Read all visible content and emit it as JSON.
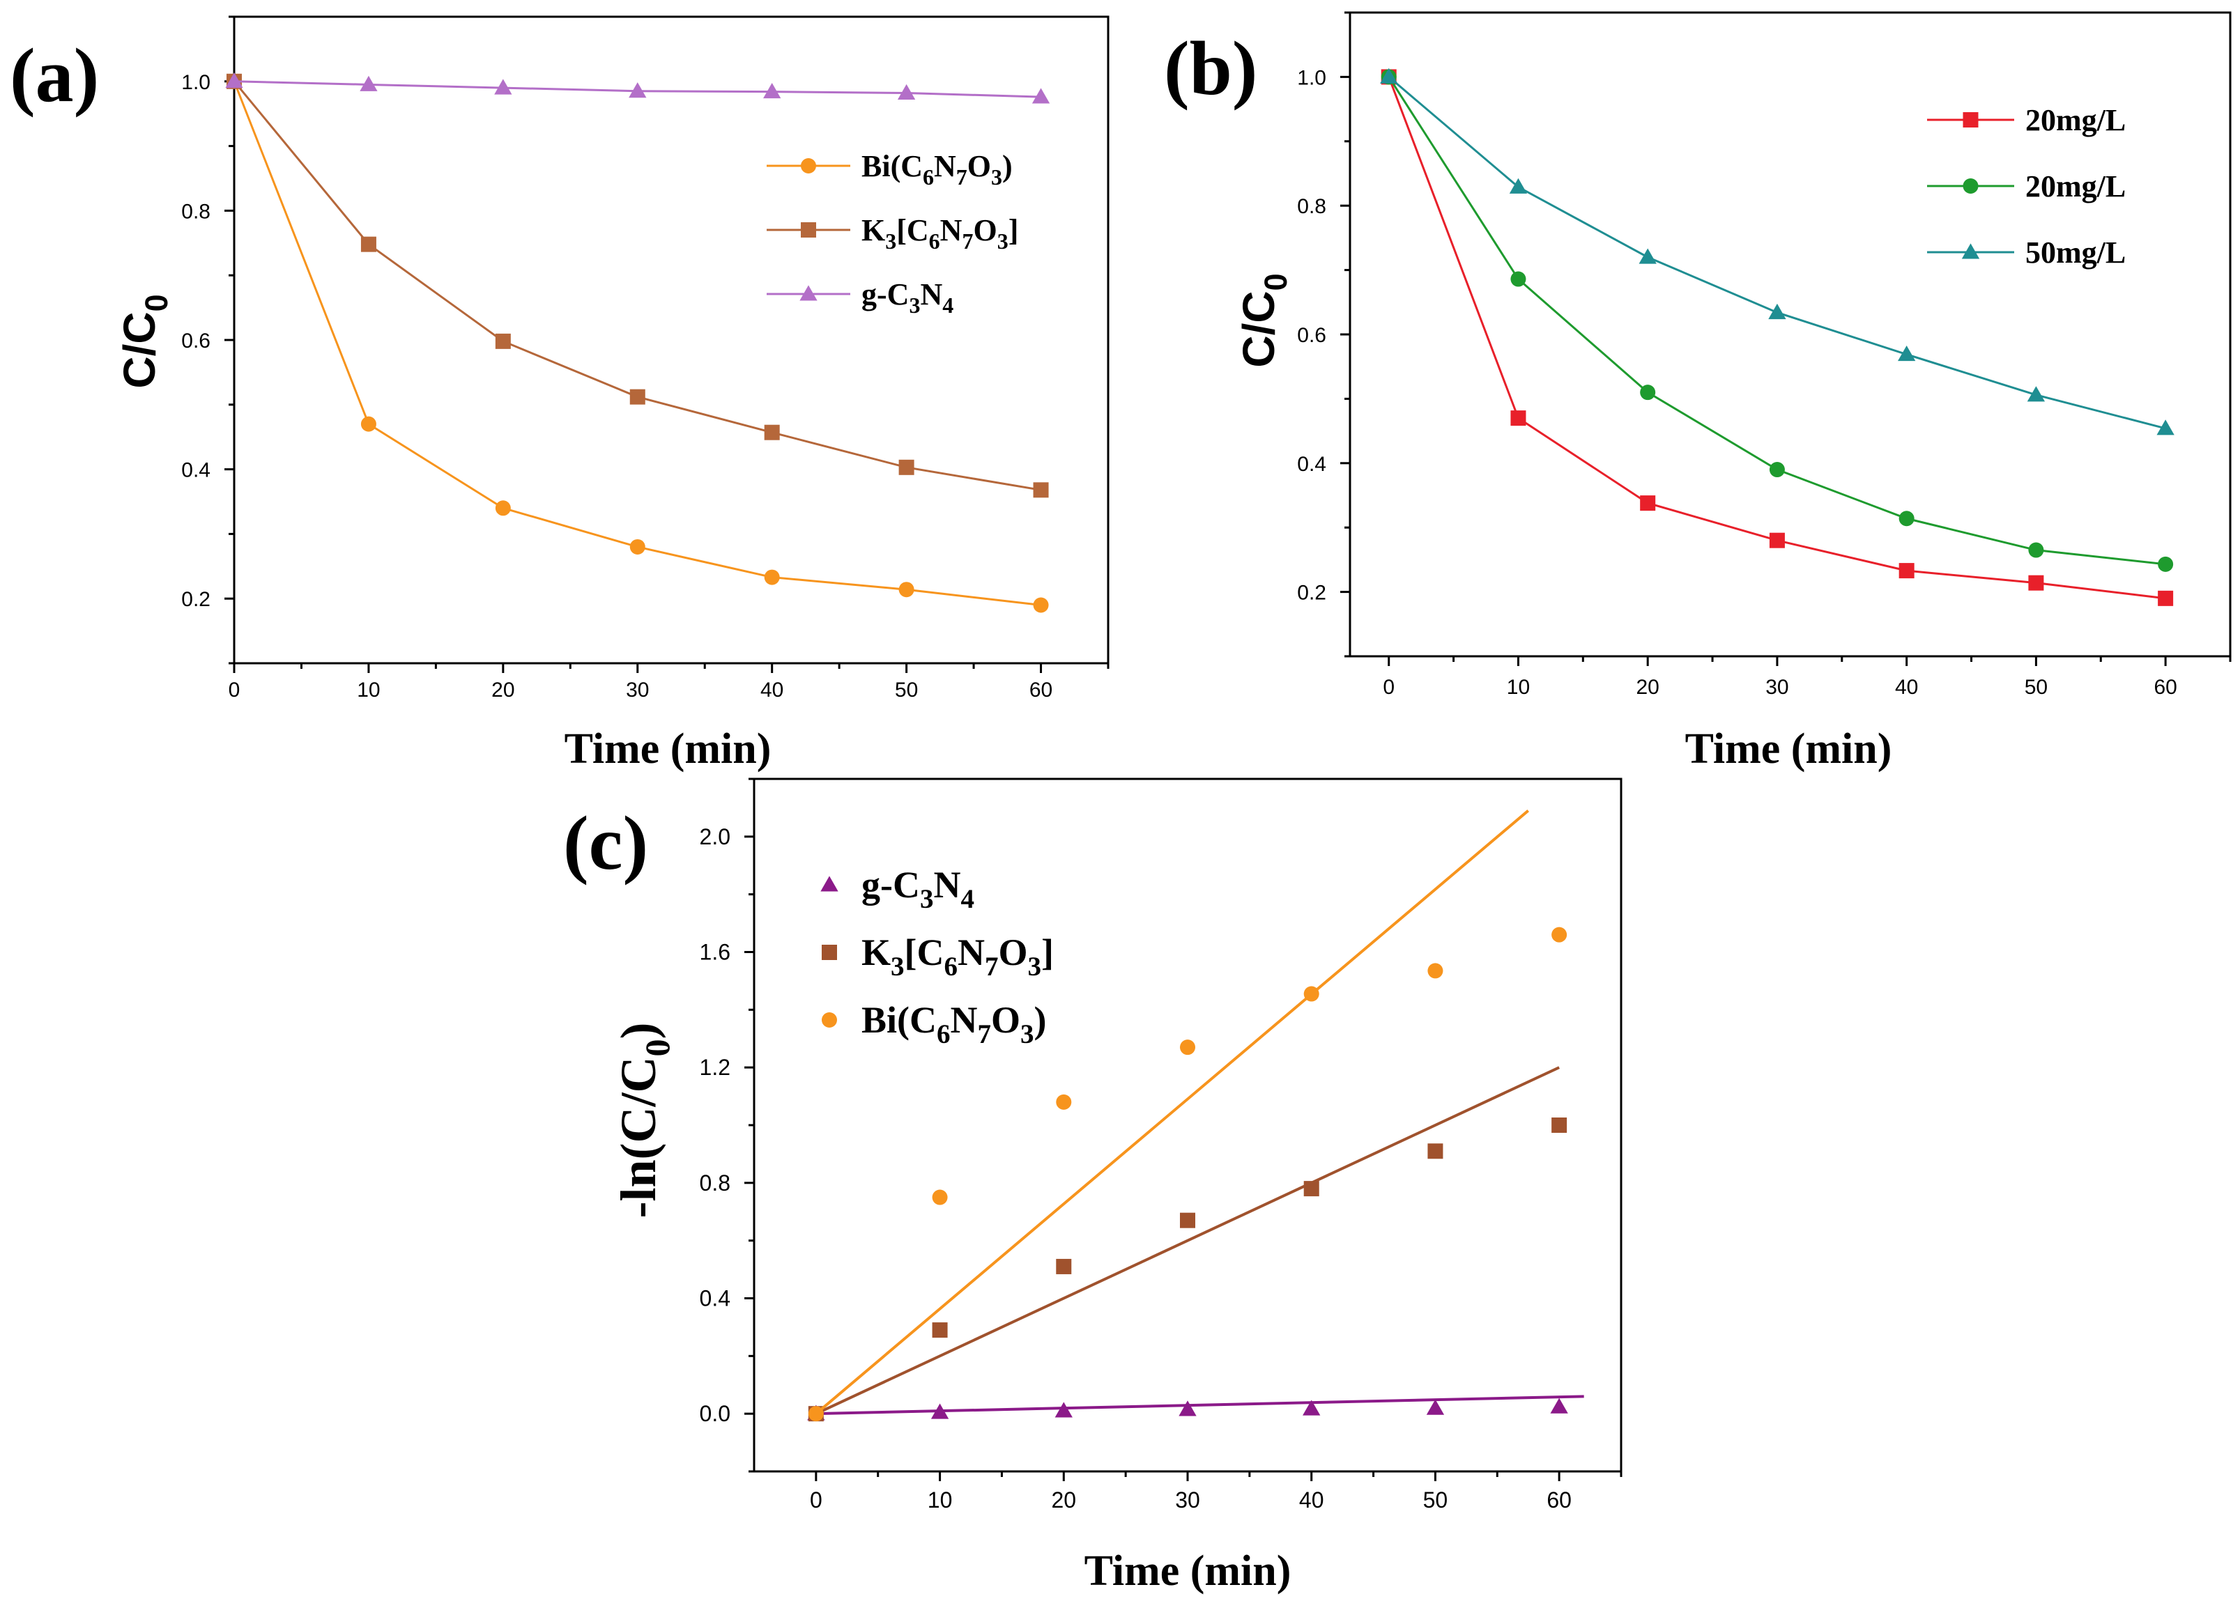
{
  "chart_data": [
    {
      "panel": "(a)",
      "type": "line",
      "xlabel": "Time (min)",
      "ylabel": "C/C0",
      "ylabel_main": "C/C",
      "ylabel_sub": "0",
      "xlim": [
        0,
        65
      ],
      "ylim": [
        0.1,
        1.1
      ],
      "xticks": [
        0,
        10,
        20,
        30,
        40,
        50,
        60
      ],
      "xtick_labels": [
        "0",
        "10",
        "20",
        "30",
        "40",
        "50",
        "60"
      ],
      "yticks": [
        0.2,
        0.4,
        0.6,
        0.8,
        1.0
      ],
      "ytick_labels": [
        "0.2",
        "0.4",
        "0.6",
        "0.8",
        "1.0"
      ],
      "legend_position": "upper-right",
      "x": [
        0,
        10,
        20,
        30,
        40,
        50,
        60
      ],
      "series": [
        {
          "name": "Bi(C6N7O3)",
          "label_parts": [
            {
              "t": "Bi(C",
              "sub": false
            },
            {
              "t": "6",
              "sub": true
            },
            {
              "t": "N",
              "sub": false
            },
            {
              "t": "7",
              "sub": true
            },
            {
              "t": "O",
              "sub": false
            },
            {
              "t": "3",
              "sub": true
            },
            {
              "t": ")",
              "sub": false
            }
          ],
          "color": "#F7941D",
          "marker": "circle",
          "values": [
            1.0,
            0.47,
            0.34,
            0.28,
            0.233,
            0.214,
            0.19
          ]
        },
        {
          "name": "K3[C6N7O3]",
          "label_parts": [
            {
              "t": "K",
              "sub": false
            },
            {
              "t": "3",
              "sub": true
            },
            {
              "t": "[C",
              "sub": false
            },
            {
              "t": "6",
              "sub": true
            },
            {
              "t": "N",
              "sub": false
            },
            {
              "t": "7",
              "sub": true
            },
            {
              "t": "O",
              "sub": false
            },
            {
              "t": "3",
              "sub": true
            },
            {
              "t": "]",
              "sub": false
            }
          ],
          "color": "#B5673A",
          "marker": "square",
          "values": [
            1.0,
            0.748,
            0.598,
            0.512,
            0.457,
            0.403,
            0.368
          ]
        },
        {
          "name": "g-C3N4",
          "label_parts": [
            {
              "t": "g-C",
              "sub": false
            },
            {
              "t": "3",
              "sub": true
            },
            {
              "t": "N",
              "sub": false
            },
            {
              "t": "4",
              "sub": true
            }
          ],
          "color": "#B36FC8",
          "marker": "triangle",
          "values": [
            1.0,
            0.995,
            0.99,
            0.985,
            0.984,
            0.982,
            0.976
          ]
        }
      ]
    },
    {
      "panel": "(b)",
      "type": "line",
      "xlabel": "Time (min)",
      "ylabel": "C/C0",
      "ylabel_main": "C/C",
      "ylabel_sub": "0",
      "xlim": [
        -3,
        65
      ],
      "ylim": [
        0.1,
        1.1
      ],
      "xticks": [
        0,
        10,
        20,
        30,
        40,
        50,
        60
      ],
      "xtick_labels": [
        "0",
        "10",
        "20",
        "30",
        "40",
        "50",
        "60"
      ],
      "yticks": [
        0.2,
        0.4,
        0.6,
        0.8,
        1.0
      ],
      "ytick_labels": [
        "0.2",
        "0.4",
        "0.6",
        "0.8",
        "1.0"
      ],
      "legend_position": "upper-right",
      "x": [
        0,
        10,
        20,
        30,
        40,
        50,
        60
      ],
      "series": [
        {
          "name": "20mg/L",
          "label_parts": [
            {
              "t": "20mg/L",
              "sub": false
            }
          ],
          "color": "#E8202A",
          "marker": "square",
          "values": [
            1.0,
            0.47,
            0.338,
            0.28,
            0.233,
            0.214,
            0.19
          ]
        },
        {
          "name": "20mg/L",
          "label_parts": [
            {
              "t": "20mg/L",
              "sub": false
            }
          ],
          "color": "#1E9B2E",
          "marker": "circle",
          "values": [
            1.0,
            0.686,
            0.51,
            0.39,
            0.314,
            0.265,
            0.243
          ]
        },
        {
          "name": "50mg/L",
          "label_parts": [
            {
              "t": "50mg/L",
              "sub": false
            }
          ],
          "color": "#1F8E92",
          "marker": "triangle",
          "values": [
            1.0,
            0.829,
            0.72,
            0.634,
            0.569,
            0.506,
            0.454
          ]
        }
      ]
    },
    {
      "panel": "(c)",
      "type": "scatter",
      "xlabel": "Time  (min)",
      "ylabel": "-ln(C/C0)",
      "ylabel_main": "-ln(C/C",
      "ylabel_sub": "0",
      "ylabel_end": ")",
      "xlim": [
        -5,
        65
      ],
      "ylim": [
        -0.2,
        2.2
      ],
      "xticks": [
        0,
        10,
        20,
        30,
        40,
        50,
        60
      ],
      "xtick_labels": [
        "0",
        "10",
        "20",
        "30",
        "40",
        "50",
        "60"
      ],
      "yticks": [
        0.0,
        0.4,
        0.8,
        1.2,
        1.6,
        2.0
      ],
      "ytick_labels": [
        "0.0",
        "0.4",
        "0.8",
        "1.2",
        "1.6",
        "2.0"
      ],
      "legend_position": "upper-left",
      "x": [
        0,
        10,
        20,
        30,
        40,
        50,
        60
      ],
      "series": [
        {
          "name": "g-C3N4",
          "label_parts": [
            {
              "t": "g-C",
              "sub": false
            },
            {
              "t": "3",
              "sub": true
            },
            {
              "t": "N",
              "sub": false
            },
            {
              "t": "4",
              "sub": true
            }
          ],
          "color": "#8B1A89",
          "marker": "triangle",
          "values": [
            0.0,
            0.005,
            0.01,
            0.015,
            0.017,
            0.019,
            0.024
          ],
          "fit": {
            "x0": 0,
            "y0": 0.0,
            "x1": 62,
            "y1": 0.06
          }
        },
        {
          "name": "K3[C6N7O3]",
          "label_parts": [
            {
              "t": "K",
              "sub": false
            },
            {
              "t": "3",
              "sub": true
            },
            {
              "t": "[C",
              "sub": false
            },
            {
              "t": "6",
              "sub": true
            },
            {
              "t": "N",
              "sub": false
            },
            {
              "t": "7",
              "sub": true
            },
            {
              "t": "O",
              "sub": false
            },
            {
              "t": "3",
              "sub": true
            },
            {
              "t": "]",
              "sub": false
            }
          ],
          "color": "#A0522D",
          "marker": "square",
          "values": [
            0.0,
            0.29,
            0.51,
            0.67,
            0.78,
            0.91,
            1.0
          ],
          "fit": {
            "x0": 0,
            "y0": 0.0,
            "x1": 60,
            "y1": 1.2
          }
        },
        {
          "name": "Bi(C6N7O3)",
          "label_parts": [
            {
              "t": "Bi(C",
              "sub": false
            },
            {
              "t": "6",
              "sub": true
            },
            {
              "t": "N",
              "sub": false
            },
            {
              "t": "7",
              "sub": true
            },
            {
              "t": "O",
              "sub": false
            },
            {
              "t": "3",
              "sub": true
            },
            {
              "t": ")",
              "sub": false
            }
          ],
          "color": "#F7941D",
          "marker": "circle",
          "values": [
            0.0,
            0.75,
            1.08,
            1.27,
            1.455,
            1.535,
            1.66
          ],
          "fit": {
            "x0": 0,
            "y0": 0.0,
            "x1": 57.5,
            "y1": 2.09
          }
        }
      ]
    }
  ]
}
